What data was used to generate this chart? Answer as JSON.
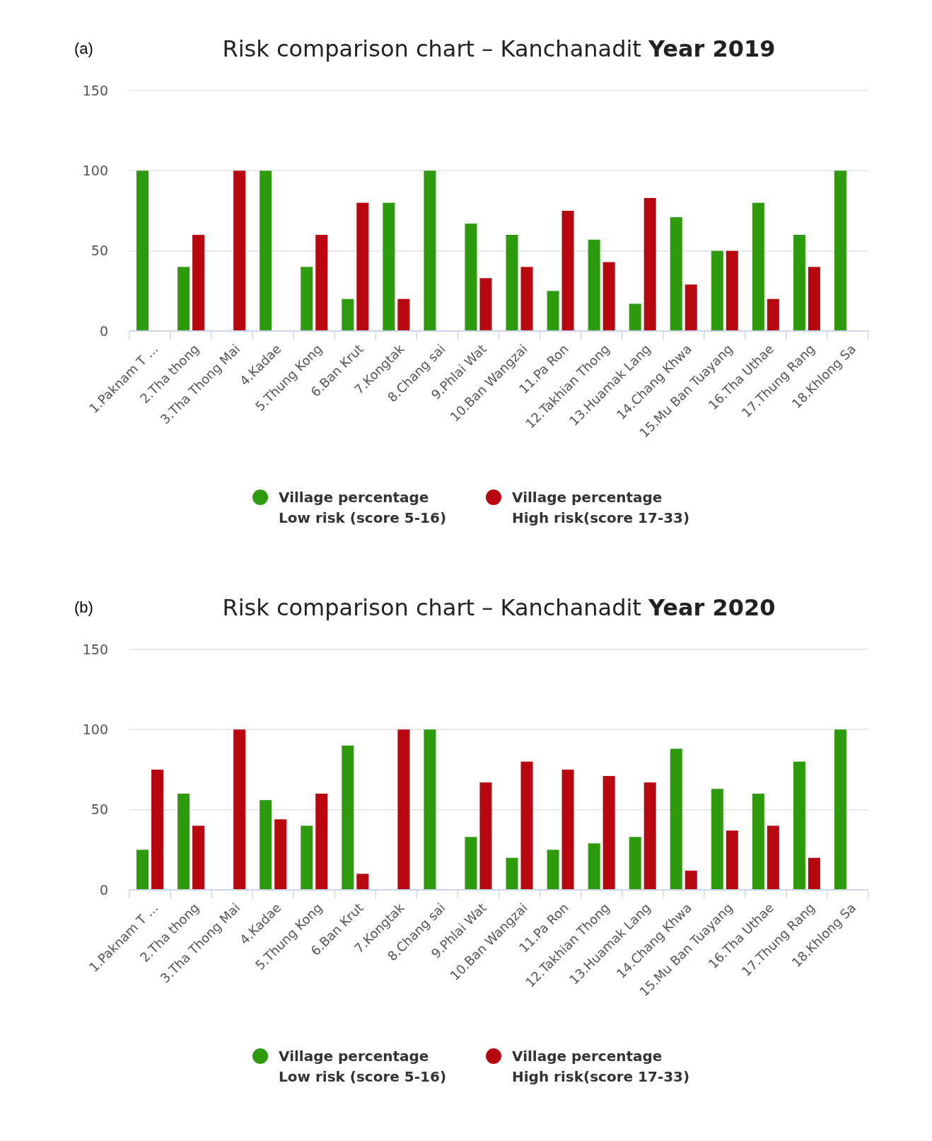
{
  "chart_data": [
    {
      "type": "bar",
      "title": "Risk comparison chart – Kanchanadit Year 2019",
      "annotations": [
        "(a)"
      ],
      "categories": [
        "1.Paknam T ...",
        "2.Tha thong",
        "3.Tha Thong Mai",
        "4.Kadae",
        "5.Thung Kong",
        "6.Ban Krut",
        "7.Kongtak",
        "8.Chang sai",
        "9.Phlai Wat",
        "10.Ban Wangzai",
        "11.Pa Ron",
        "12.Takhian Thong",
        "13.Huamak Lang",
        "14.Chang Khwa",
        "15.Mu Ban Tuayang",
        "16.Tha Uthae",
        "17.Thung Rang",
        "18.Khlong Sa"
      ],
      "series": [
        {
          "name": "Village percentage\nLow risk (score 5-16)",
          "color": "#2e9a0e",
          "values": [
            100,
            40,
            0,
            100,
            40,
            20,
            80,
            100,
            67,
            60,
            25,
            57,
            17,
            71,
            50,
            80,
            60,
            100
          ]
        },
        {
          "name": "Village percentage\nHigh risk(score 17-33)",
          "color": "#b8070f",
          "values": [
            0,
            60,
            100,
            0,
            60,
            80,
            20,
            0,
            33,
            40,
            75,
            43,
            83,
            29,
            50,
            20,
            40,
            0
          ]
        }
      ],
      "ylim": [
        0,
        150
      ],
      "yticks": [
        0,
        50,
        100,
        150
      ],
      "grid": "y",
      "legend": "bottom"
    },
    {
      "type": "bar",
      "title": "Risk comparison chart – Kanchanadit Year 2020",
      "annotations": [
        "(b)"
      ],
      "categories": [
        "1.Paknam T ...",
        "2.Tha thong",
        "3.Tha Thong Mai",
        "4.Kadae",
        "5.Thung Kong",
        "6.Ban Krut",
        "7.Kongtak",
        "8.Chang sai",
        "9.Phlai Wat",
        "10.Ban Wangzai",
        "11.Pa Ron",
        "12.Takhian Thong",
        "13.Huamak Lang",
        "14.Chang Khwa",
        "15.Mu Ban Tuayang",
        "16.Tha Uthae",
        "17.Thung Rang",
        "18.Khlong Sa"
      ],
      "series": [
        {
          "name": "Village percentage\nLow risk (score 5-16)",
          "color": "#2e9a0e",
          "values": [
            25,
            60,
            0,
            56,
            40,
            90,
            0,
            100,
            33,
            20,
            25,
            29,
            33,
            88,
            63,
            60,
            80,
            100
          ]
        },
        {
          "name": "Village percentage\nHigh risk(score 17-33)",
          "color": "#b8070f",
          "values": [
            75,
            40,
            100,
            44,
            60,
            10,
            100,
            0,
            67,
            80,
            75,
            71,
            67,
            12,
            37,
            40,
            20,
            0
          ]
        }
      ],
      "ylim": [
        0,
        150
      ],
      "yticks": [
        0,
        50,
        100,
        150
      ],
      "grid": "y",
      "legend": "bottom"
    }
  ]
}
